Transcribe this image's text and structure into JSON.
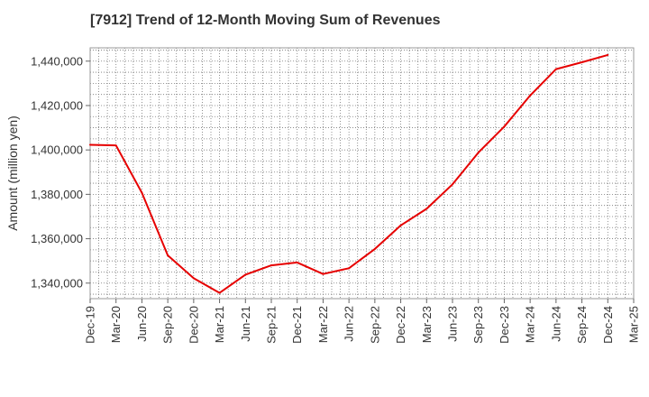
{
  "chart_data": {
    "type": "line",
    "title": "[7912]  Trend of 12-Month Moving Sum of Revenues",
    "xlabel": "",
    "ylabel": "Amount (million yen)",
    "x_ticks": [
      "Dec-19",
      "Mar-20",
      "Jun-20",
      "Sep-20",
      "Dec-20",
      "Mar-21",
      "Jun-21",
      "Sep-21",
      "Dec-21",
      "Mar-22",
      "Jun-22",
      "Sep-22",
      "Dec-22",
      "Mar-23",
      "Jun-23",
      "Sep-23",
      "Dec-23",
      "Mar-24",
      "Jun-24",
      "Sep-24",
      "Dec-24",
      "Mar-25"
    ],
    "y_ticks": [
      1340000,
      1360000,
      1380000,
      1400000,
      1420000,
      1440000
    ],
    "y_tick_labels": [
      "1,340,000",
      "1,360,000",
      "1,380,000",
      "1,400,000",
      "1,420,000",
      "1,440,000"
    ],
    "ylim": [
      1333000,
      1446000
    ],
    "grid": true,
    "series": [
      {
        "color": "#e60000",
        "x": [
          "Dec-19",
          "Mar-20",
          "Jun-20",
          "Sep-20",
          "Dec-20",
          "Mar-21",
          "Jun-21",
          "Sep-21",
          "Dec-21",
          "Mar-22",
          "Jun-22",
          "Sep-22",
          "Dec-22",
          "Mar-23",
          "Jun-23",
          "Sep-23",
          "Dec-23",
          "Mar-24",
          "Jun-24",
          "Sep-24",
          "Dec-24"
        ],
        "values": [
          1402300,
          1402000,
          1380700,
          1352500,
          1342200,
          1335600,
          1343800,
          1348000,
          1349300,
          1344100,
          1346700,
          1355400,
          1366000,
          1373500,
          1384500,
          1398800,
          1410500,
          1424500,
          1436400,
          1439500,
          1442800
        ]
      }
    ]
  }
}
